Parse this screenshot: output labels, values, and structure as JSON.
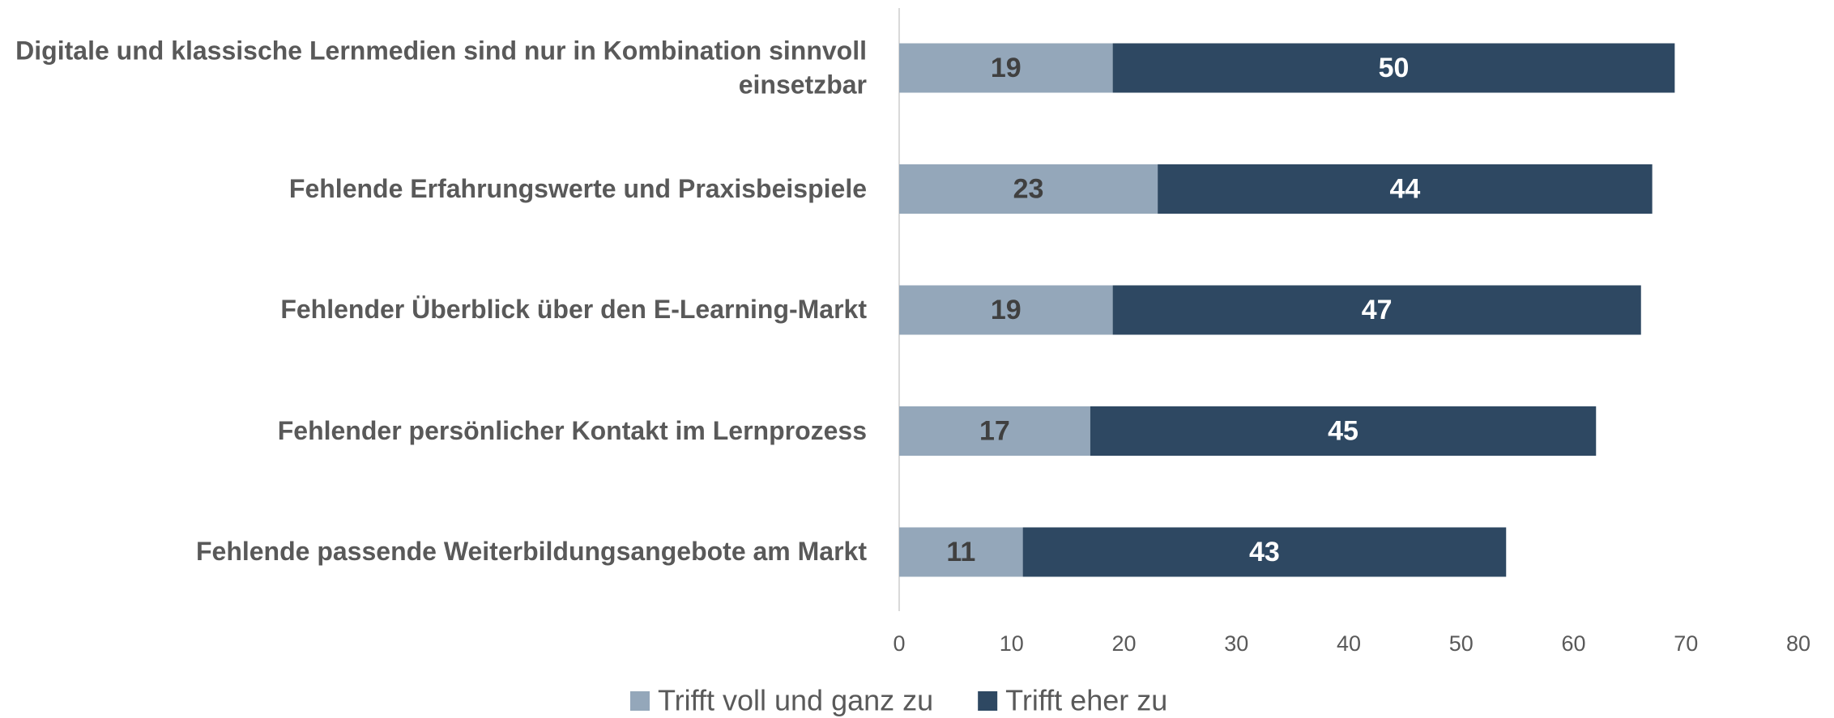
{
  "chart_data": {
    "type": "stacked_barh",
    "categories": [
      "Digitale und klassische Lernmedien sind nur in Kombination sinnvoll einsetzbar",
      "Fehlende Erfahrungswerte und Praxisbeispiele",
      "Fehlender Überblick über den E-Learning-Markt",
      "Fehlender persönlicher Kontakt im Lernprozess",
      "Fehlende passende Weiterbildungsangebote am Markt"
    ],
    "series": [
      {
        "name": "Trifft voll und ganz zu",
        "color": "#94a7ba",
        "label_color": "#404040",
        "values": [
          19,
          23,
          19,
          17,
          11
        ]
      },
      {
        "name": "Trifft eher zu",
        "color": "#2e4862",
        "label_color": "#ffffff",
        "values": [
          50,
          44,
          47,
          45,
          43
        ]
      }
    ],
    "xlim": [
      0,
      80
    ],
    "xticks": [
      0,
      10,
      20,
      30,
      40,
      50,
      60,
      70,
      80
    ],
    "legend": "bottom"
  }
}
